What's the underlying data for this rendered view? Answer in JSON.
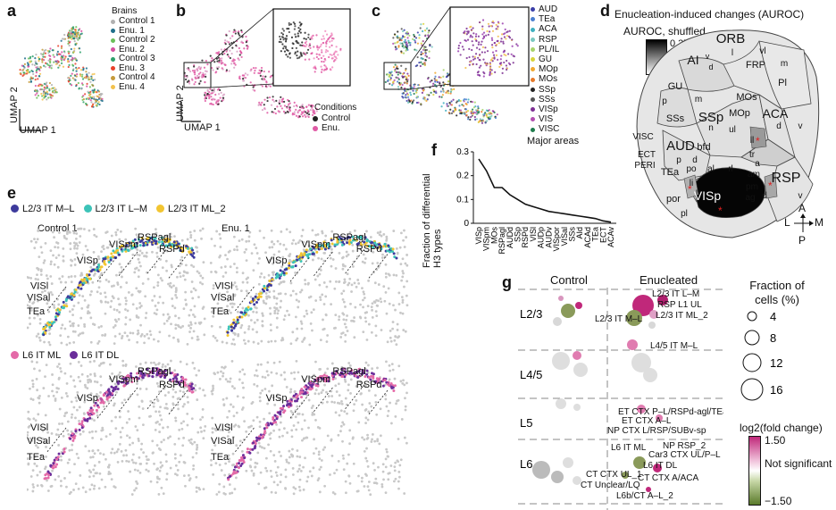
{
  "panel_a": {
    "letter": "a",
    "legend_title": "Brains",
    "legend": [
      {
        "label": "Control 1",
        "color": "#b0b0b0"
      },
      {
        "label": "Enu. 1",
        "color": "#1f6f8b"
      },
      {
        "label": "Control 2",
        "color": "#6bbf59"
      },
      {
        "label": "Enu. 2",
        "color": "#d64fa0"
      },
      {
        "label": "Control 3",
        "color": "#2ea06b"
      },
      {
        "label": "Enu. 3",
        "color": "#e8412b"
      },
      {
        "label": "Control 4",
        "color": "#c59a3a"
      },
      {
        "label": "Enu. 4",
        "color": "#f2c14e"
      }
    ],
    "axis_x": "UMAP 1",
    "axis_y": "UMAP 2"
  },
  "panel_b": {
    "letter": "b",
    "legend_title": "Conditions",
    "legend": [
      {
        "label": "Control",
        "color": "#222222"
      },
      {
        "label": "Enu.",
        "color": "#e05aa5"
      }
    ],
    "axis_x": "UMAP 1",
    "axis_y": "UMAP 2"
  },
  "panel_c": {
    "letter": "c",
    "areas": [
      {
        "label": "AUD",
        "color": "#3b3fa8"
      },
      {
        "label": "TEa",
        "color": "#4b7fd0"
      },
      {
        "label": "ACA",
        "color": "#3fb0c0"
      },
      {
        "label": "RSP",
        "color": "#7bc8c0"
      },
      {
        "label": "PL/IL",
        "color": "#a7d36b"
      },
      {
        "label": "GU",
        "color": "#d7d43b"
      },
      {
        "label": "MOp",
        "color": "#f0a930"
      },
      {
        "label": "MOs",
        "color": "#e67a2a"
      },
      {
        "label": "SSp",
        "color": "#222222"
      },
      {
        "label": "SSs",
        "color": "#555555"
      },
      {
        "label": "VISp",
        "color": "#7d2f93"
      },
      {
        "label": "VIS",
        "color": "#b24fb0"
      },
      {
        "label": "VISC",
        "color": "#1e7b4c"
      }
    ],
    "caption": "Major areas"
  },
  "panel_d": {
    "letter": "d",
    "title": "Enucleation-induced changes (AUROC)",
    "scale_title": "AUROC, shuffled",
    "scale_max": "0.37",
    "scale_min": "0",
    "regions": [
      "ORB",
      "l",
      "vl",
      "AI",
      "v",
      "d",
      "FRP",
      "m",
      "Pl",
      "MOs",
      "ACA",
      "d",
      "v",
      "GU",
      "m",
      "p",
      "SSs",
      "SSp",
      "n",
      "ul",
      "MOp",
      "VISC",
      "ECT",
      "PERI",
      "AUD",
      "bfd",
      "ll",
      "p",
      "d",
      "TEa",
      "po",
      "al",
      "rl",
      "tr",
      "a",
      "am",
      "RSP",
      "li",
      "pm",
      "ag",
      "d",
      "v",
      "por",
      "l",
      "VISp",
      "pl"
    ],
    "compass": {
      "a": "A",
      "l": "L",
      "m": "M",
      "p": "P"
    }
  },
  "panel_e": {
    "letter": "e",
    "legend_top": [
      {
        "label": "L2/3 IT M–L",
        "color": "#3d3a9c"
      },
      {
        "label": "L2/3 IT L–M",
        "color": "#3cc3b8"
      },
      {
        "label": "L2/3 IT ML_2",
        "color": "#f2c531"
      }
    ],
    "legend_bottom": [
      {
        "label": "L6 IT ML",
        "color": "#e46aa8"
      },
      {
        "label": "L6 IT DL",
        "color": "#6a2d9a"
      }
    ],
    "titles": [
      "Control 1",
      "Enu. 1"
    ],
    "area_labels": [
      "VISpm",
      "RSPagl",
      "RSPd",
      "VISp",
      "VISl",
      "VISal",
      "TEa"
    ]
  },
  "panel_f": {
    "letter": "f",
    "chart_data": {
      "type": "line",
      "ylabel": "Fraction of differential H3 types",
      "categories": [
        "VISp",
        "VISpm",
        "MOs",
        "RSPagl",
        "AUDd",
        "SSp",
        "RSPd",
        "VISl",
        "AUDp",
        "AUDv",
        "VISpor",
        "VISal",
        "SSs",
        "AId",
        "ACAd",
        "TEa",
        "ECT",
        "ACAv"
      ],
      "values": [
        0.27,
        0.22,
        0.15,
        0.15,
        0.12,
        0.1,
        0.08,
        0.07,
        0.06,
        0.05,
        0.045,
        0.04,
        0.035,
        0.03,
        0.025,
        0.02,
        0.01,
        0.005
      ],
      "ylim": [
        0,
        0.3
      ],
      "yticks": [
        "0",
        "0.1",
        "0.2",
        "0.3"
      ]
    }
  },
  "panel_g": {
    "letter": "g",
    "col_control": "Control",
    "col_enucleated": "Enucleated",
    "rows": [
      "L2/3",
      "L4/5",
      "L5",
      "L6"
    ],
    "labels_l23": [
      "L2/3 IT L–M",
      "RSP L1 UL",
      "L2/3 IT M–L",
      "L2/3 IT ML_2"
    ],
    "labels_l45": [
      "L4/5 IT M–L"
    ],
    "labels_l5": [
      "ET CTX P–L/RSPd-agl/TEa",
      "ET CTX A–L",
      "NP CTX L/RSP/SUBv-sp"
    ],
    "labels_l6": [
      "L6 IT ML",
      "NP RSP_2",
      "Car3 CTX UL/P–L",
      "L6 IT DL",
      "CT CTX UL_1",
      "CT CTX A/ACA",
      "CT Unclear/LQ",
      "L6b/CT A–L_2"
    ],
    "size_legend_title": "Fraction of cells (%)",
    "size_legend": [
      "4",
      "8",
      "12",
      "16"
    ],
    "color_legend_title": "log2(fold change)",
    "color_max": "1.50",
    "color_mid": "Not significant",
    "color_min": "−1.50"
  }
}
